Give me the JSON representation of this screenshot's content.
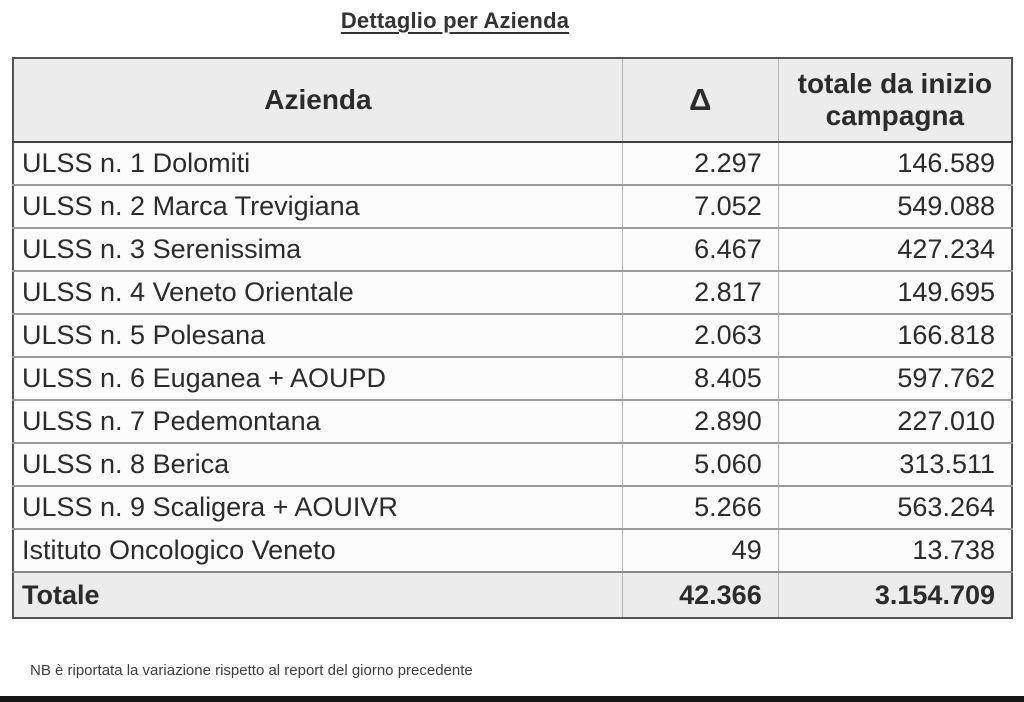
{
  "page": {
    "title": "Dettaglio per Azienda",
    "note": "NB è riportata la variazione rispetto al report del giorno precedente"
  },
  "table": {
    "columns": [
      "Azienda",
      "Δ",
      "totale da inizio campagna"
    ],
    "rows": [
      {
        "azienda": "ULSS n. 1 Dolomiti",
        "delta": "2.297",
        "totale": "146.589"
      },
      {
        "azienda": "ULSS n. 2 Marca Trevigiana",
        "delta": "7.052",
        "totale": "549.088"
      },
      {
        "azienda": "ULSS n. 3 Serenissima",
        "delta": "6.467",
        "totale": "427.234"
      },
      {
        "azienda": "ULSS n. 4 Veneto Orientale",
        "delta": "2.817",
        "totale": "149.695"
      },
      {
        "azienda": "ULSS n. 5 Polesana",
        "delta": "2.063",
        "totale": "166.818"
      },
      {
        "azienda": "ULSS n. 6 Euganea + AOUPD",
        "delta": "8.405",
        "totale": "597.762"
      },
      {
        "azienda": "ULSS n. 7 Pedemontana",
        "delta": "2.890",
        "totale": "227.010"
      },
      {
        "azienda": "ULSS n. 8 Berica",
        "delta": "5.060",
        "totale": "313.511"
      },
      {
        "azienda": "ULSS n. 9 Scaligera + AOUIVR",
        "delta": "5.266",
        "totale": "563.264"
      },
      {
        "azienda": "Istituto Oncologico Veneto",
        "delta": "49",
        "totale": "13.738"
      }
    ],
    "total_row": {
      "azienda": "Totale",
      "delta": "42.366",
      "totale": "3.154.709"
    }
  },
  "colors": {
    "header_bg": "#ececec",
    "row_bg": "#fcfcfc",
    "text": "#2b2b2b",
    "title_text": "#333333",
    "outer_border": "#545454",
    "bottom_bar": "#161616"
  }
}
